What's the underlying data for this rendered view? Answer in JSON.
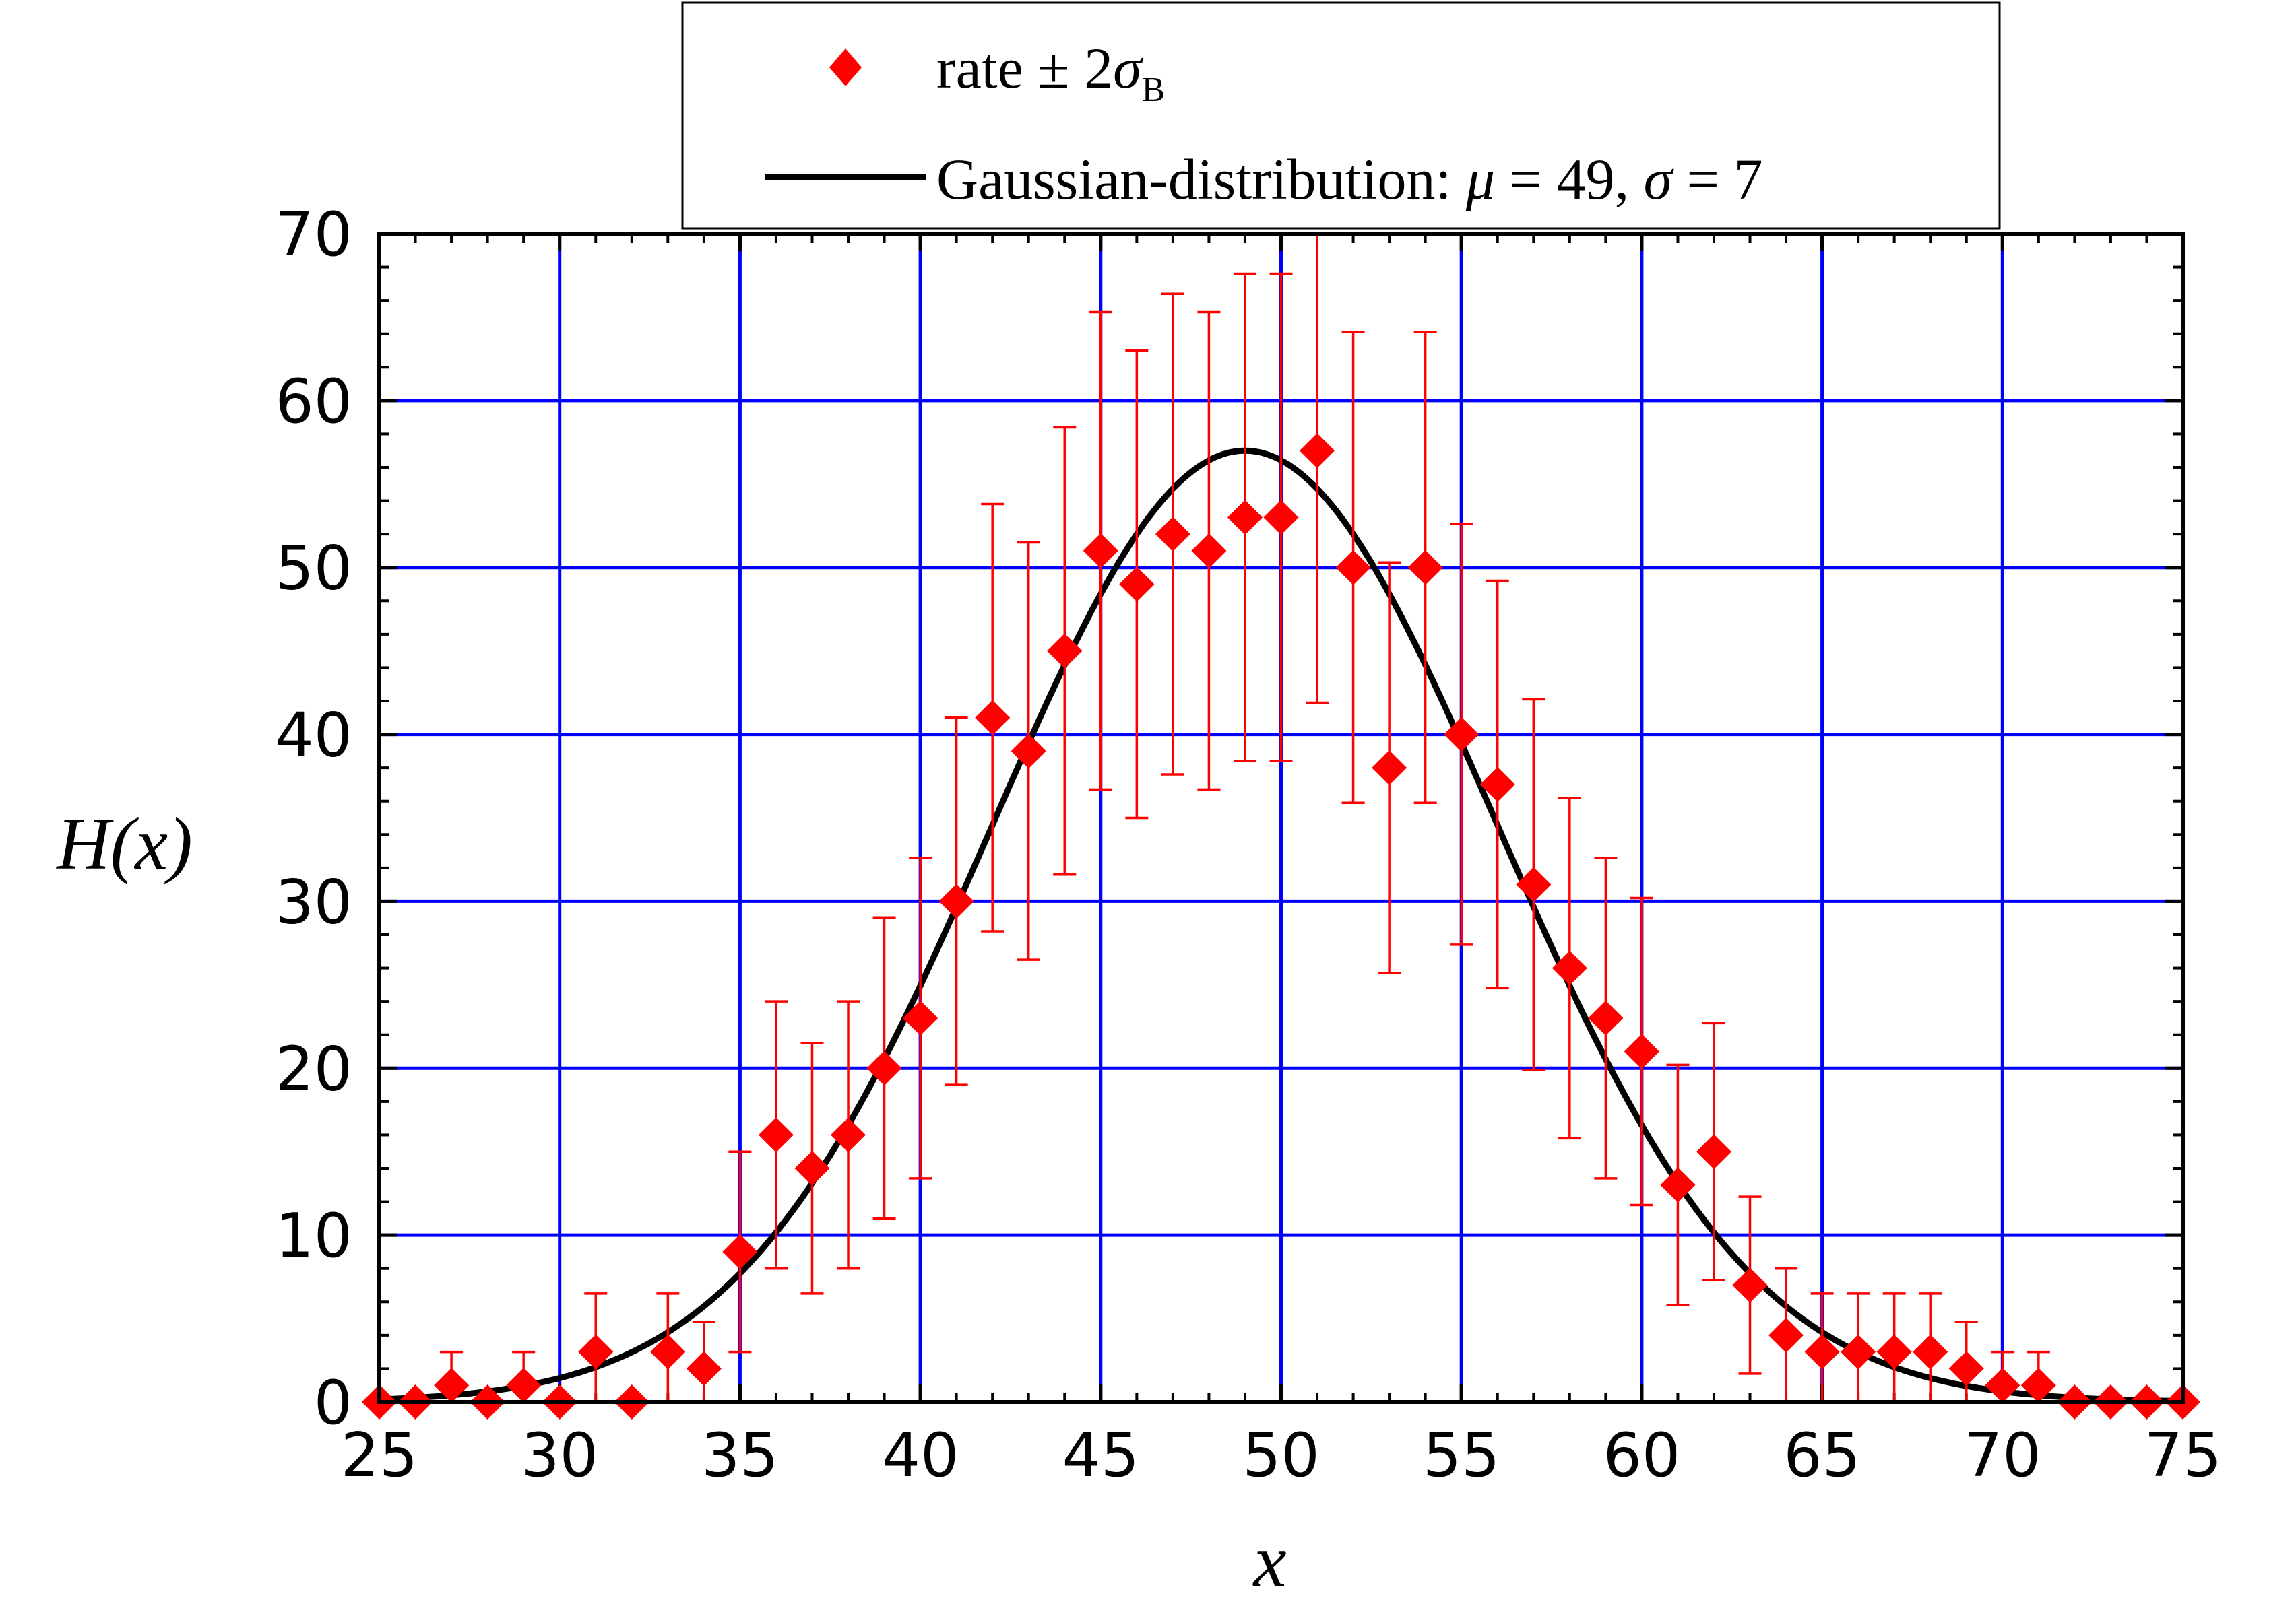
{
  "chart_data": {
    "type": "scatter",
    "xlabel": "x",
    "ylabel": "H(x)",
    "xlim": [
      25,
      75
    ],
    "ylim": [
      0,
      70
    ],
    "x_major_step": 5,
    "y_major_step": 10,
    "grid": true,
    "grid_color": "#0000ff",
    "legend_position": "top-center",
    "legend": {
      "points_label": "rate ± 2",
      "points_symbol": "σ",
      "points_subscript": "B",
      "curve_label": "Gaussian-distribution: ",
      "curve_mu_symbol": "μ",
      "curve_mu_text": " = 49, ",
      "curve_sigma_symbol": "σ",
      "curve_sigma_text": " = 7"
    },
    "series": [
      {
        "type": "scatter",
        "marker": "diamond",
        "color": "#ff0000",
        "error_bars": "± 2σ",
        "x": [
          25,
          26,
          27,
          28,
          29,
          30,
          31,
          32,
          33,
          34,
          35,
          36,
          37,
          38,
          39,
          40,
          41,
          42,
          43,
          44,
          45,
          46,
          47,
          48,
          49,
          50,
          51,
          52,
          53,
          54,
          55,
          56,
          57,
          58,
          59,
          60,
          61,
          62,
          63,
          64,
          65,
          66,
          67,
          68,
          69,
          70,
          71,
          72,
          73,
          74,
          75
        ],
        "y": [
          0,
          0,
          1,
          0,
          1,
          0,
          3,
          0,
          3,
          2,
          9,
          16,
          14,
          16,
          20,
          23,
          30,
          41,
          39,
          45,
          51,
          49,
          52,
          51,
          53,
          53,
          57,
          50,
          38,
          50,
          40,
          37,
          31,
          26,
          23,
          21,
          13,
          15,
          7,
          4,
          3,
          3,
          3,
          3,
          2,
          1,
          1,
          0,
          0,
          0,
          0
        ],
        "yerr": [
          0,
          0,
          2,
          0,
          2,
          0,
          3.5,
          0,
          3.5,
          2.8,
          6,
          8,
          7.5,
          8,
          9,
          9.6,
          11,
          12.8,
          12.5,
          13.4,
          14.3,
          14,
          14.4,
          14.3,
          14.6,
          14.6,
          15.1,
          14.1,
          12.3,
          14.1,
          12.6,
          12.2,
          11.1,
          10.2,
          9.6,
          9.2,
          7.2,
          7.7,
          5.3,
          4,
          3.5,
          3.5,
          3.5,
          3.5,
          2.8,
          2,
          2,
          0,
          0,
          0,
          0
        ]
      },
      {
        "type": "line",
        "color": "#000000",
        "function": "gaussian",
        "mu": 49,
        "sigma": 7,
        "peak": 57
      }
    ]
  }
}
